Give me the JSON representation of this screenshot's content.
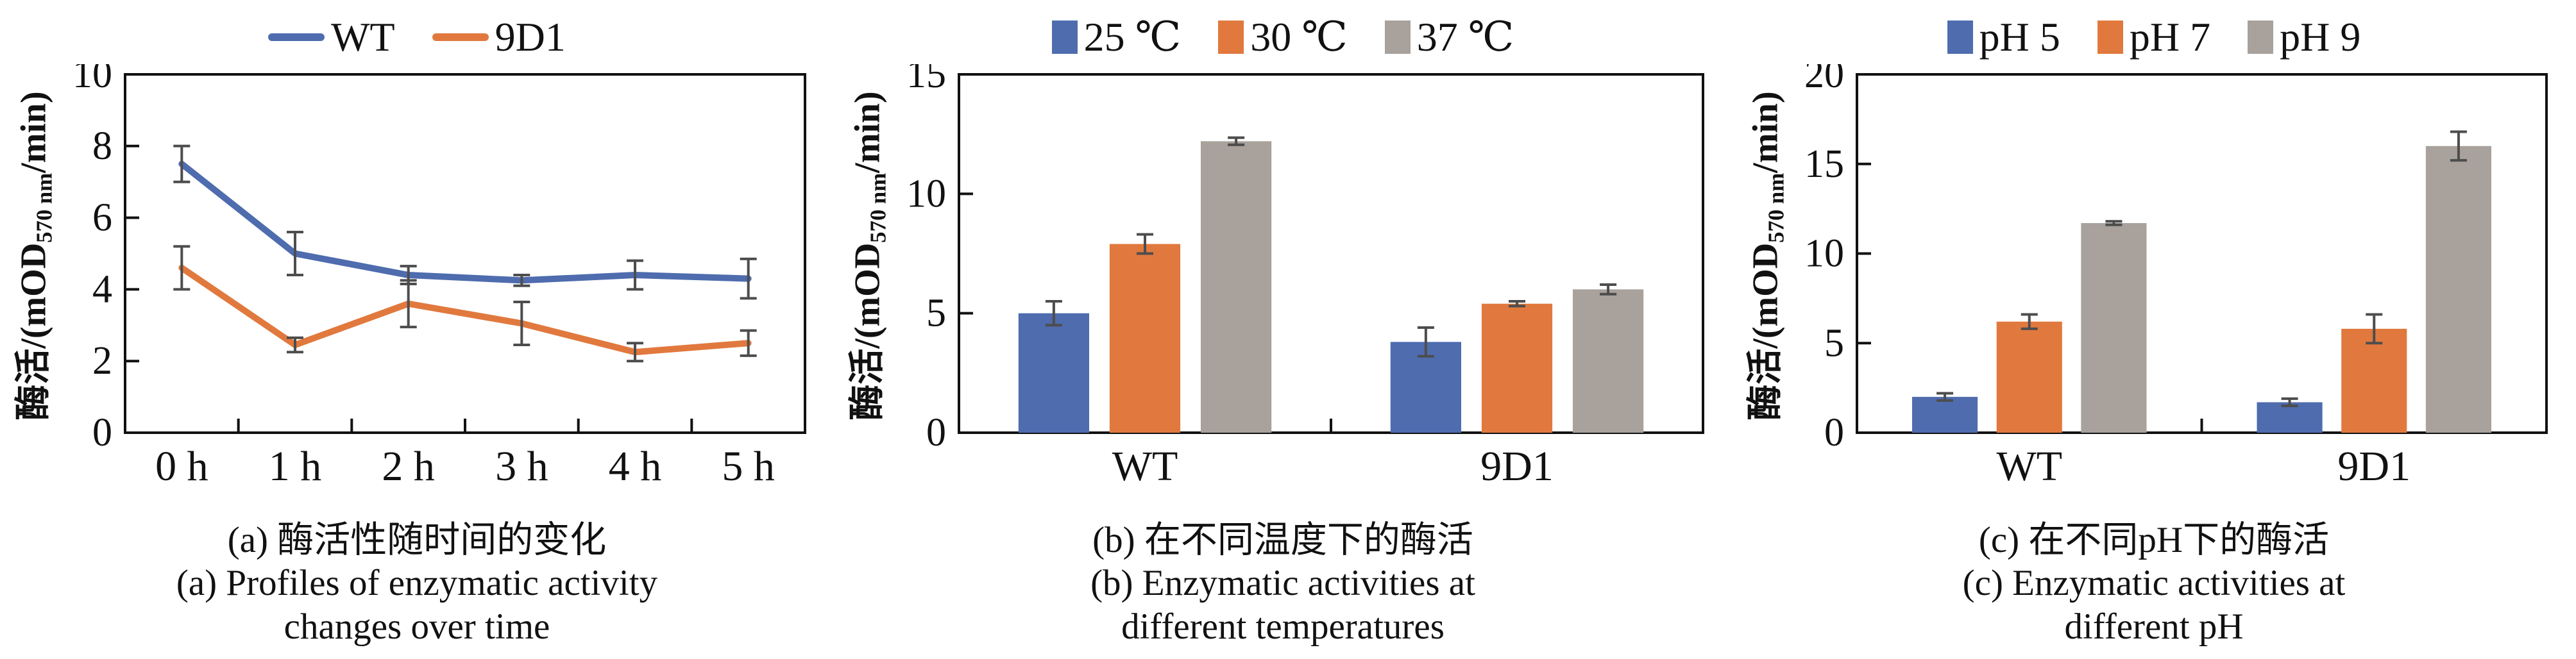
{
  "colors": {
    "blue": "#4e6cae",
    "orange": "#e1793e",
    "gray": "#a8a19c",
    "error_bar": "#4d4d4d",
    "axis": "#111111"
  },
  "ylabel": {
    "pre": "酶活/(mOD",
    "sub": "570 nm",
    "post": "/min)"
  },
  "chart_data": [
    {
      "type": "line",
      "title": "",
      "legend_marker": "line",
      "legend_position": "top",
      "grid": false,
      "categories": [
        "0 h",
        "1 h",
        "2 h",
        "3 h",
        "4 h",
        "5 h"
      ],
      "series": [
        {
          "name": "WT",
          "color": "#4e6cae",
          "values": [
            7.5,
            5.0,
            4.4,
            4.25,
            4.4,
            4.3
          ],
          "errors": [
            0.5,
            0.6,
            0.25,
            0.15,
            0.4,
            0.55
          ]
        },
        {
          "name": "9D1",
          "color": "#e1793e",
          "values": [
            4.6,
            2.45,
            3.6,
            3.05,
            2.25,
            2.5
          ],
          "errors": [
            0.6,
            0.2,
            0.65,
            0.6,
            0.25,
            0.35
          ]
        }
      ],
      "xlabel": "",
      "ylabel": "酶活/(mOD570 nm/min)",
      "ylim": [
        0,
        10
      ],
      "yticks": [
        0,
        2,
        4,
        6,
        8,
        10
      ]
    },
    {
      "type": "bar",
      "title": "",
      "legend_marker": "square",
      "legend_position": "top",
      "grid": false,
      "categories": [
        "WT",
        "9D1"
      ],
      "series": [
        {
          "name": "25 ℃",
          "color": "#4e6cae",
          "values": [
            5.0,
            3.8
          ],
          "errors": [
            0.5,
            0.6
          ]
        },
        {
          "name": "30 ℃",
          "color": "#e1793e",
          "values": [
            7.9,
            5.4
          ],
          "errors": [
            0.4,
            0.1
          ]
        },
        {
          "name": "37 ℃",
          "color": "#a8a19c",
          "values": [
            12.2,
            6.0
          ],
          "errors": [
            0.15,
            0.2
          ]
        }
      ],
      "xlabel": "",
      "ylabel": "酶活/(mOD570 nm/min)",
      "ylim": [
        0,
        15
      ],
      "yticks": [
        0,
        5,
        10,
        15
      ]
    },
    {
      "type": "bar",
      "title": "",
      "legend_marker": "square",
      "legend_position": "top",
      "grid": false,
      "categories": [
        "WT",
        "9D1"
      ],
      "series": [
        {
          "name": "pH 5",
          "color": "#4e6cae",
          "values": [
            2.0,
            1.7
          ],
          "errors": [
            0.2,
            0.2
          ]
        },
        {
          "name": "pH 7",
          "color": "#e1793e",
          "values": [
            6.2,
            5.8
          ],
          "errors": [
            0.4,
            0.8
          ]
        },
        {
          "name": "pH 9",
          "color": "#a8a19c",
          "values": [
            11.7,
            16.0
          ],
          "errors": [
            0.1,
            0.8
          ]
        }
      ],
      "xlabel": "",
      "ylabel": "酶活/(mOD570 nm/min)",
      "ylim": [
        0,
        20
      ],
      "yticks": [
        0,
        5,
        10,
        15,
        20
      ]
    }
  ],
  "panels": [
    {
      "caption_zh": "(a) 酶活性随时间的变化",
      "caption_en1": "(a) Profiles of enzymatic activity",
      "caption_en2": "changes over time"
    },
    {
      "caption_zh": "(b) 在不同温度下的酶活",
      "caption_en1": "(b) Enzymatic activities at",
      "caption_en2": "different temperatures"
    },
    {
      "caption_zh": "(c) 在不同pH下的酶活",
      "caption_en1": "(c) Enzymatic activities at",
      "caption_en2": "different pH"
    }
  ]
}
